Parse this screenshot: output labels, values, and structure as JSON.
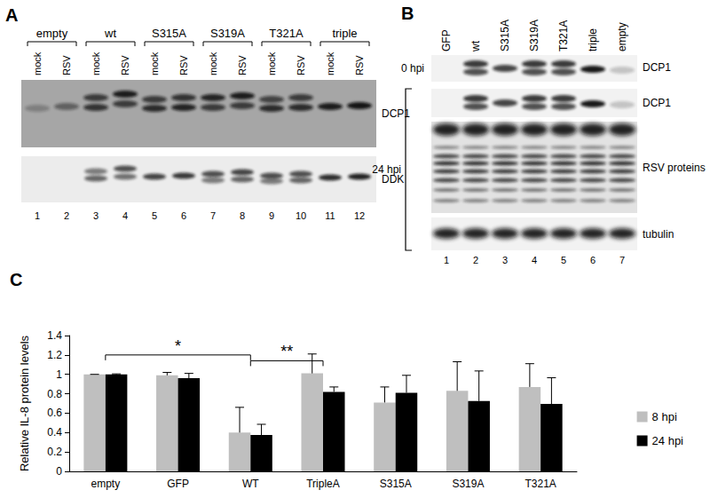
{
  "chart_data": {
    "type": "bar",
    "panel_label": "C",
    "ylabel": "Relative IL-8 protein levels",
    "categories": [
      "empty",
      "GFP",
      "WT",
      "TripleA",
      "S315A",
      "S319A",
      "T321A"
    ],
    "series": [
      {
        "name": "8 hpi",
        "color": "#bfbfbf",
        "values": [
          1.0,
          0.99,
          0.4,
          1.01,
          0.71,
          0.83,
          0.87
        ],
        "errors": [
          0,
          0.03,
          0.26,
          0.2,
          0.16,
          0.3,
          0.24
        ]
      },
      {
        "name": "24 hpi",
        "color": "#000000",
        "values": [
          1.0,
          0.96,
          0.375,
          0.82,
          0.81,
          0.725,
          0.695
        ],
        "errors": [
          0.005,
          0.05,
          0.11,
          0.05,
          0.18,
          0.31,
          0.27
        ]
      }
    ],
    "ylim": [
      0,
      1.4
    ],
    "yticks": [
      0,
      0.2,
      0.4,
      0.6,
      0.8,
      1,
      1.2,
      1.4
    ],
    "grid": false,
    "legend": "right",
    "annotations": [
      {
        "text": "*",
        "from": "empty",
        "to": "WT",
        "y": 1.2
      },
      {
        "text": "**",
        "from": "WT",
        "to": "TripleA",
        "y": 1.14
      }
    ]
  },
  "panel_a": {
    "label": "A",
    "groups": [
      "empty",
      "wt",
      "S315A",
      "S319A",
      "T321A",
      "triple"
    ],
    "conditions": [
      "mock",
      "RSV"
    ],
    "blots": [
      "DCP1",
      "DDK"
    ],
    "lane_numbers": [
      1,
      2,
      3,
      4,
      5,
      6,
      7,
      8,
      9,
      10,
      11,
      12
    ]
  },
  "panel_b": {
    "label": "B",
    "lanes": [
      "GFP",
      "wt",
      "S315A",
      "S319A",
      "T321A",
      "triple",
      "empty"
    ],
    "timepoints": [
      "0 hpi",
      "24 hpi"
    ],
    "blots": [
      {
        "timepoint": "0 hpi",
        "name": "DCP1"
      },
      {
        "timepoint": "24 hpi",
        "name": "DCP1"
      },
      {
        "timepoint": "24 hpi",
        "name": "RSV proteins"
      },
      {
        "timepoint": "24 hpi",
        "name": "tubulin"
      }
    ],
    "lane_numbers": [
      1,
      2,
      3,
      4,
      5,
      6,
      7
    ]
  }
}
